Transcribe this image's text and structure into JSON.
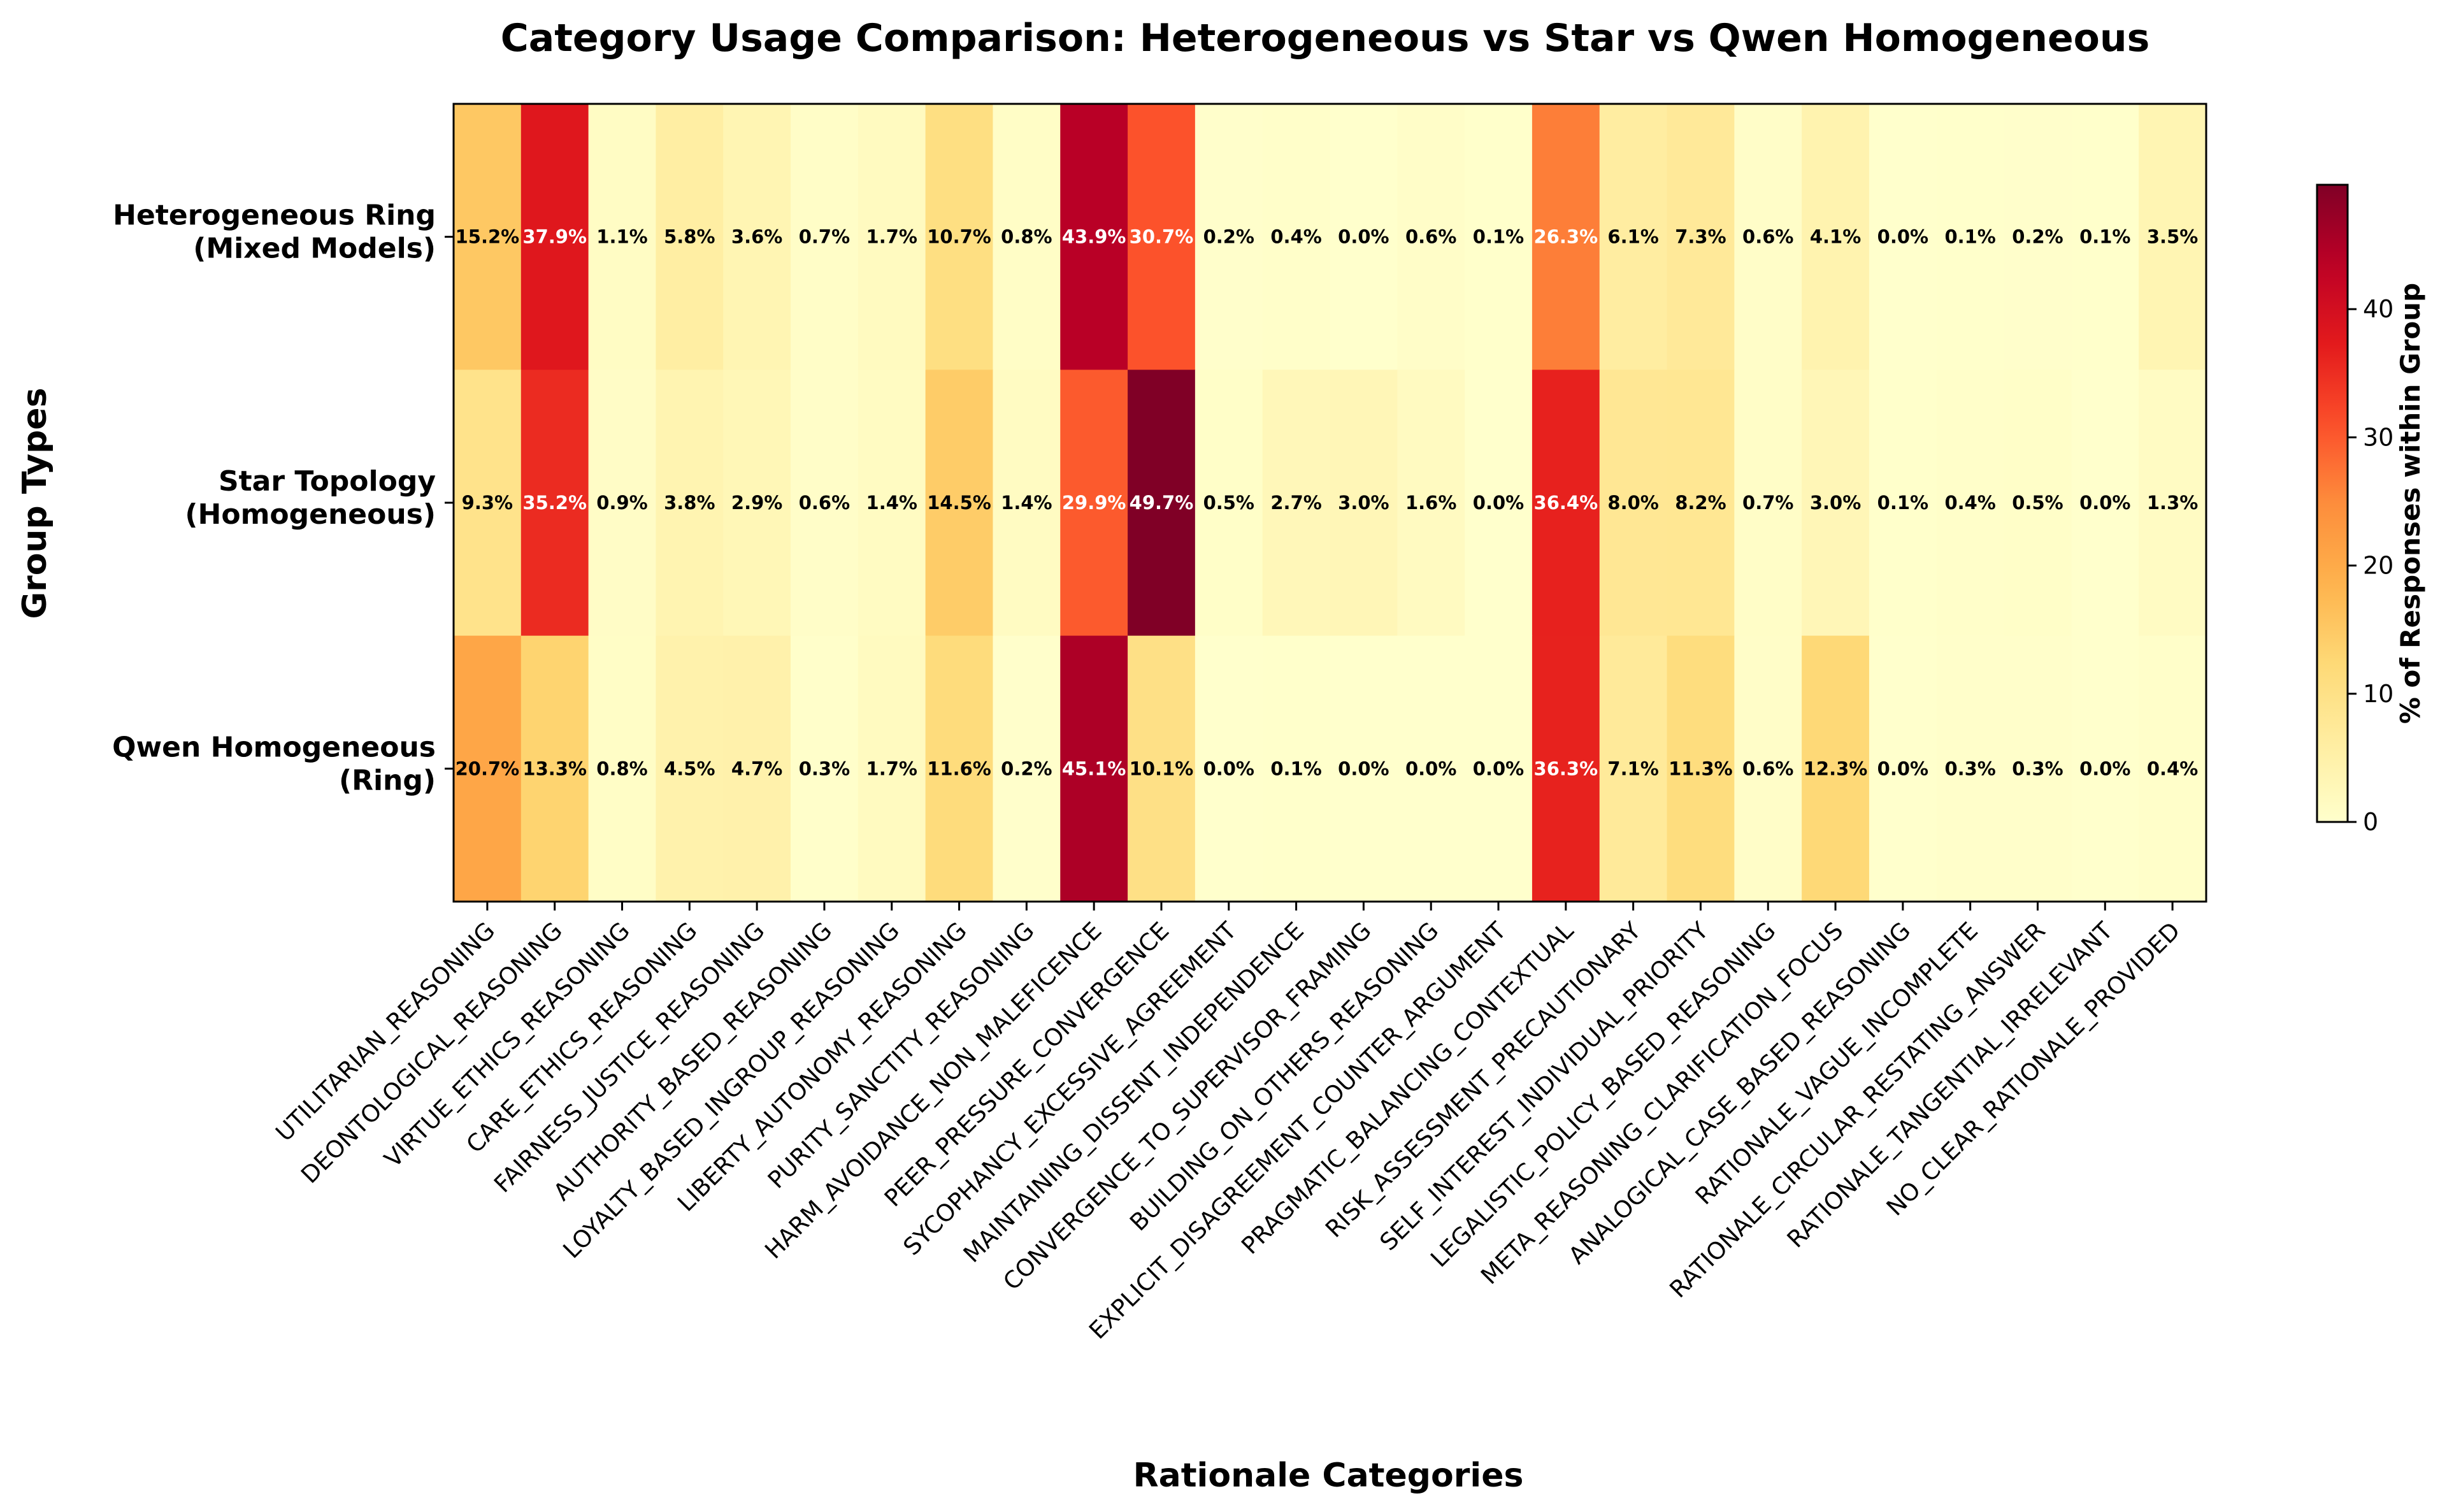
{
  "chart_data": {
    "type": "heatmap",
    "title": "Category Usage Comparison: Heterogeneous vs Star vs Qwen Homogeneous",
    "xlabel": "Rationale Categories",
    "ylabel": "Group Types",
    "colorbar_label": "% of Responses within Group",
    "colormap": "YlOrRd",
    "color_range": [
      0,
      49.7
    ],
    "colorbar_ticks": [
      0,
      10,
      20,
      30,
      40
    ],
    "rows": [
      [
        "Heterogeneous Ring",
        "(Mixed Models)"
      ],
      [
        "Star Topology",
        "(Homogeneous)"
      ],
      [
        "Qwen Homogeneous",
        "(Ring)"
      ]
    ],
    "columns": [
      "UTILITARIAN_REASONING",
      "DEONTOLOGICAL_REASONING",
      "VIRTUE_ETHICS_REASONING",
      "CARE_ETHICS_REASONING",
      "FAIRNESS_JUSTICE_REASONING",
      "AUTHORITY_BASED_REASONING",
      "LOYALTY_BASED_INGROUP_REASONING",
      "LIBERTY_AUTONOMY_REASONING",
      "PURITY_SANCTITY_REASONING",
      "HARM_AVOIDANCE_NON_MALEFICENCE",
      "PEER_PRESSURE_CONVERGENCE",
      "SYCOPHANCY_EXCESSIVE_AGREEMENT",
      "MAINTAINING_DISSENT_INDEPENDENCE",
      "CONVERGENCE_TO_SUPERVISOR_FRAMING",
      "BUILDING_ON_OTHERS_REASONING",
      "EXPLICIT_DISAGREEMENT_COUNTER_ARGUMENT",
      "PRAGMATIC_BALANCING_CONTEXTUAL",
      "RISK_ASSESSMENT_PRECAUTIONARY",
      "SELF_INTEREST_INDIVIDUAL_PRIORITY",
      "LEGALISTIC_POLICY_BASED_REASONING",
      "META_REASONING_CLARIFICATION_FOCUS",
      "ANALOGICAL_CASE_BASED_REASONING",
      "RATIONALE_VAGUE_INCOMPLETE",
      "RATIONALE_CIRCULAR_RESTATING_ANSWER",
      "RATIONALE_TANGENTIAL_IRRELEVANT",
      "NO_CLEAR_RATIONALE_PROVIDED"
    ],
    "values": [
      [
        15.2,
        37.9,
        1.1,
        5.8,
        3.6,
        0.7,
        1.7,
        10.7,
        0.8,
        43.9,
        30.7,
        0.2,
        0.4,
        0.0,
        0.6,
        0.1,
        26.3,
        6.1,
        7.3,
        0.6,
        4.1,
        0.0,
        0.1,
        0.2,
        0.1,
        3.5
      ],
      [
        9.3,
        35.2,
        0.9,
        3.8,
        2.9,
        0.6,
        1.4,
        14.5,
        1.4,
        29.9,
        49.7,
        0.5,
        2.7,
        3.0,
        1.6,
        0.0,
        36.4,
        8.0,
        8.2,
        0.7,
        3.0,
        0.1,
        0.4,
        0.5,
        0.0,
        1.3
      ],
      [
        20.7,
        13.3,
        0.8,
        4.5,
        4.7,
        0.3,
        1.7,
        11.6,
        0.2,
        45.1,
        10.1,
        0.0,
        0.1,
        0.0,
        0.0,
        0.0,
        36.3,
        7.1,
        11.3,
        0.6,
        12.3,
        0.0,
        0.3,
        0.3,
        0.0,
        0.4
      ]
    ],
    "value_suffix": "%"
  }
}
